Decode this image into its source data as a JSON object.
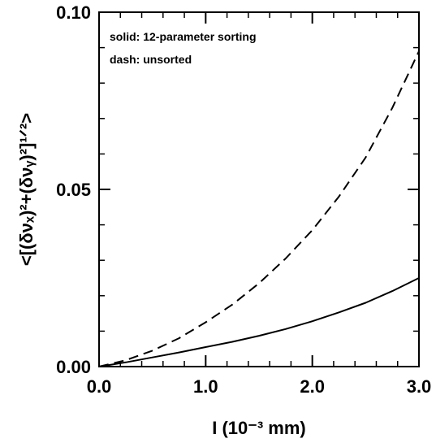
{
  "chart_data": {
    "type": "line",
    "xlabel": "I (10⁻³ mm)",
    "ylabel": "<[(δνₓ)²+(δνᵧ)²]¹ᐟ²>",
    "xlim": [
      0.0,
      3.0
    ],
    "ylim": [
      0.0,
      0.1
    ],
    "x_ticks": [
      "0.0",
      "1.0",
      "2.0",
      "3.0"
    ],
    "y_ticks": [
      "0.00",
      "0.05",
      "0.10"
    ],
    "annotations": [
      "solid: 12-parameter sorting",
      "dash: unsorted"
    ],
    "grid": false,
    "series": [
      {
        "style": "solid",
        "x": [
          0.0,
          0.25,
          0.5,
          0.75,
          1.0,
          1.25,
          1.5,
          1.75,
          2.0,
          2.25,
          2.5,
          2.75,
          3.0
        ],
        "y": [
          0.0,
          0.0012,
          0.0026,
          0.004,
          0.0055,
          0.007,
          0.0087,
          0.0106,
          0.0128,
          0.0153,
          0.018,
          0.0213,
          0.025
        ]
      },
      {
        "style": "dashed",
        "x": [
          0.0,
          0.25,
          0.5,
          0.75,
          1.0,
          1.25,
          1.5,
          1.75,
          2.0,
          2.25,
          2.5,
          2.75,
          3.0
        ],
        "y": [
          0.0,
          0.0018,
          0.0045,
          0.008,
          0.0125,
          0.0175,
          0.0235,
          0.0305,
          0.0385,
          0.048,
          0.059,
          0.073,
          0.089
        ]
      }
    ]
  }
}
